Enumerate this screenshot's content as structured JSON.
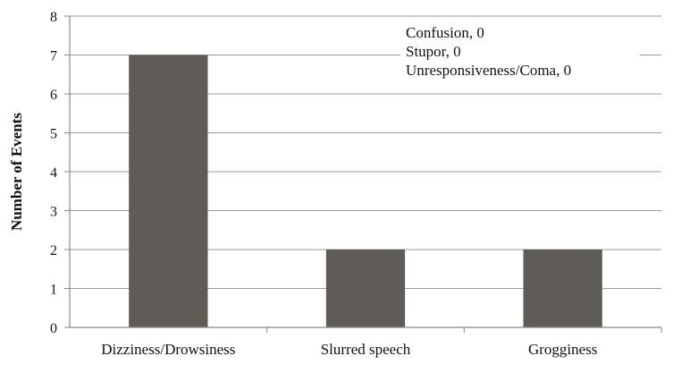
{
  "chart_data": {
    "type": "bar",
    "categories": [
      "Dizziness/Drowsiness",
      "Slurred speech",
      "Grogginess"
    ],
    "values": [
      7,
      2,
      2
    ],
    "title": "",
    "xlabel": "",
    "ylabel": "Number of Events",
    "ylim": [
      0,
      8
    ],
    "yticks": [
      0,
      1,
      2,
      3,
      4,
      5,
      6,
      7,
      8
    ],
    "grid": true,
    "bar_color": "#5f5b57",
    "annotations": [
      "Confusion, 0",
      "Stupor, 0",
      "Unresponsiveness/Coma, 0"
    ]
  }
}
